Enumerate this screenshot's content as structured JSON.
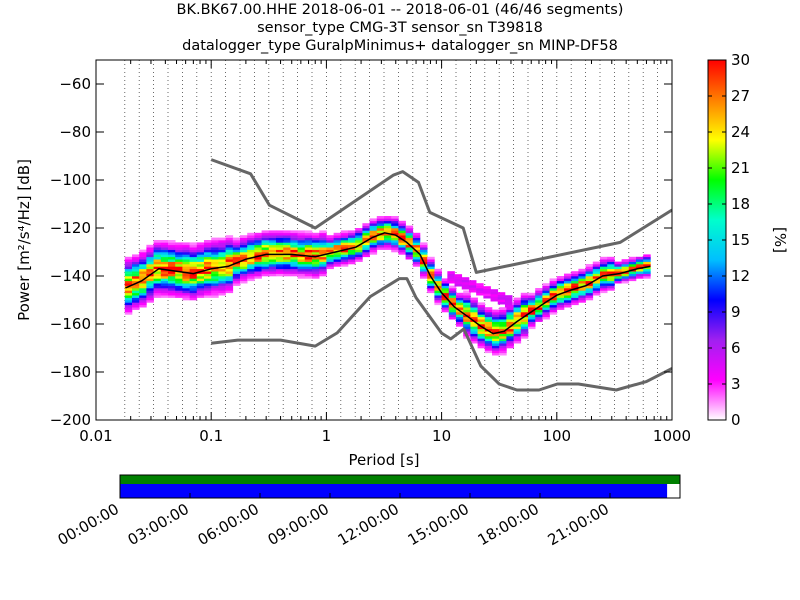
{
  "chart_data": {
    "type": "heatmap",
    "title": [
      "BK.BK67.00.HHE   2018-06-01 -- 2018-06-01  (46/46 segments)",
      "sensor_type CMG-3T sensor_sn T39818",
      "datalogger_type GuralpMinimus+ datalogger_sn MINP-DF58"
    ],
    "xlabel": "Period [s]",
    "ylabel": "Power [m²/s⁴/Hz] [dB]",
    "xscale": "log",
    "xlim": [
      0.01,
      1000
    ],
    "ylim": [
      -200,
      -50
    ],
    "xticks": [
      0.01,
      0.1,
      1,
      10,
      100,
      1000
    ],
    "xtick_labels": [
      "0.01",
      "0.1",
      "1",
      "10",
      "100",
      "1000"
    ],
    "yticks": [
      -60,
      -80,
      -100,
      -120,
      -140,
      -160,
      -180,
      -200
    ],
    "ytick_labels": [
      "−60",
      "−80",
      "−100",
      "−120",
      "−140",
      "−160",
      "−180",
      "−200"
    ],
    "grid": "dotted vertical at period bins",
    "colorbar": {
      "label": "[%]",
      "min": 0,
      "max": 30,
      "ticks": [
        0,
        3,
        6,
        9,
        12,
        15,
        18,
        21,
        24,
        27,
        30
      ],
      "tick_labels": [
        "0",
        "3",
        "6",
        "9",
        "12",
        "15",
        "18",
        "21",
        "24",
        "27",
        "30"
      ],
      "colors": [
        "#ffffff",
        "#ff00ff",
        "#a020f0",
        "#0000ff",
        "#00bfff",
        "#00ffcc",
        "#00ff00",
        "#ffff00",
        "#ff8000",
        "#ff0000"
      ]
    },
    "series": [
      {
        "role": "mode_curve",
        "color": "#000000",
        "x": [
          0.018,
          0.025,
          0.035,
          0.05,
          0.07,
          0.1,
          0.14,
          0.2,
          0.3,
          0.5,
          0.8,
          1.2,
          1.8,
          2.5,
          3.2,
          4.0,
          5.0,
          6.5,
          8.0,
          10,
          13,
          17,
          22,
          28,
          35,
          45,
          60,
          80,
          100,
          130,
          180,
          250,
          350,
          500,
          650
        ],
        "y": [
          -145,
          -142,
          -137,
          -138,
          -139,
          -137,
          -136,
          -133,
          -131,
          -131,
          -132,
          -130,
          -128,
          -124,
          -122,
          -123,
          -126,
          -131,
          -140,
          -147,
          -153,
          -157,
          -161,
          -164,
          -163,
          -159,
          -155,
          -151,
          -148,
          -146,
          -144,
          -140,
          -139,
          -137,
          -136
        ]
      },
      {
        "role": "nhnm",
        "color": "#666666",
        "x": [
          0.1,
          0.22,
          0.32,
          0.8,
          3.8,
          4.6,
          6.3,
          7.9,
          15.4,
          20,
          354.8,
          1000
        ],
        "y": [
          -91.5,
          -97.4,
          -110.5,
          -120,
          -98,
          -96.5,
          -101,
          -113.5,
          -120,
          -138.5,
          -126,
          -112.5
        ]
      },
      {
        "role": "nlnm",
        "color": "#666666",
        "x": [
          0.1,
          0.17,
          0.4,
          0.8,
          1.24,
          2.4,
          4.3,
          5.0,
          6.0,
          10,
          12,
          15.6,
          21.9,
          31.6,
          45,
          70,
          101,
          154,
          328,
          600,
          1000
        ],
        "y": [
          -168,
          -166.7,
          -166.7,
          -169.2,
          -163.7,
          -148.6,
          -141.1,
          -141.1,
          -149,
          -163.8,
          -166.2,
          -162.1,
          -177.5,
          -185,
          -187.5,
          -187.5,
          -185,
          -185,
          -187.5,
          -184,
          -178.5
        ]
      }
    ]
  },
  "timeline": {
    "tick_labels": [
      "00:00:00",
      "03:00:00",
      "06:00:00",
      "09:00:00",
      "12:00:00",
      "15:00:00",
      "18:00:00",
      "21:00:00"
    ],
    "coverage_fraction": 0.977,
    "colors": {
      "top_bar": "#008000",
      "coverage_bar": "#0000ff"
    }
  }
}
